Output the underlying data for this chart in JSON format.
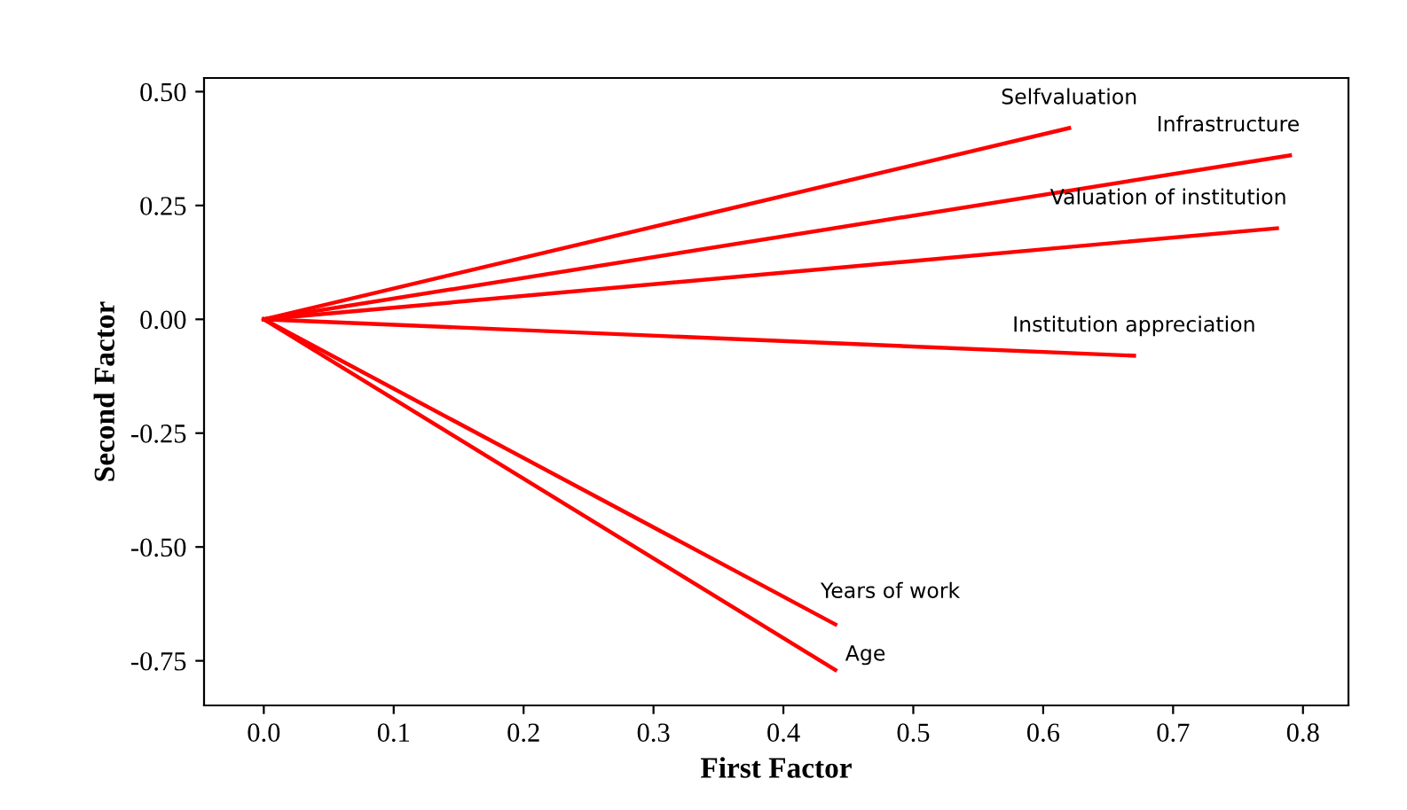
{
  "chart_data": {
    "type": "line",
    "xlabel": "First Factor",
    "ylabel": "Second Factor",
    "xlim": [
      -0.046,
      0.835
    ],
    "ylim": [
      -0.848,
      0.53
    ],
    "xticks": [
      {
        "value": 0,
        "label": "0.0"
      },
      0.1,
      0.2,
      0.3,
      0.4,
      0.5,
      0.6,
      0.7,
      0.8
    ],
    "yticks": [
      {
        "value": 0.5,
        "label": "0.50"
      },
      0.25,
      {
        "value": 0,
        "label": "0.00"
      },
      -0.25,
      {
        "value": -0.5,
        "label": "-0.50"
      },
      -0.75
    ],
    "grid": false,
    "legend": false,
    "marker": "none",
    "line_style": "solid",
    "series": [
      {
        "name": "Selfvaluation",
        "color": "#ff0000",
        "x": [
          0,
          0.62
        ],
        "values": [
          0,
          0.42
        ]
      },
      {
        "name": "Infrastructure",
        "color": "#ff0000",
        "x": [
          0,
          0.79
        ],
        "values": [
          0,
          0.36
        ]
      },
      {
        "name": "Valuation of institution",
        "color": "#ff0000",
        "x": [
          0,
          0.78
        ],
        "values": [
          0,
          0.2
        ]
      },
      {
        "name": "Institution appreciation",
        "color": "#ff0000",
        "x": [
          0,
          0.67
        ],
        "values": [
          0,
          -0.08
        ]
      },
      {
        "name": "Years of work",
        "color": "#ff0000",
        "x": [
          0,
          0.44
        ],
        "values": [
          0,
          -0.67
        ]
      },
      {
        "name": "Age",
        "color": "#ff0000",
        "x": [
          0,
          0.44
        ],
        "values": [
          0,
          -0.77
        ]
      }
    ]
  }
}
